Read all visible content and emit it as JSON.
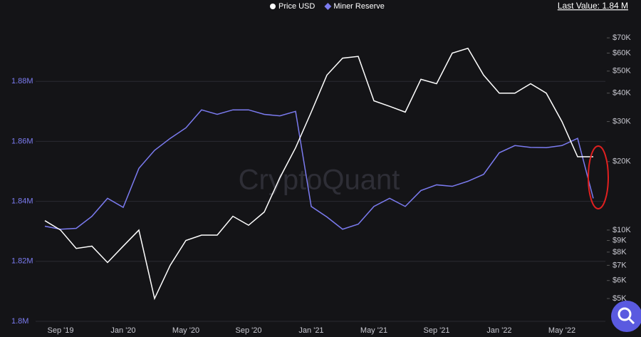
{
  "chart_data": {
    "type": "line",
    "legend_position": "top",
    "annotation": "Last Value: 1.84 M",
    "watermark": "CryptoQuant",
    "categories": [
      null,
      "Sep '19",
      null,
      null,
      null,
      "Jan '20",
      null,
      null,
      null,
      "May '20",
      null,
      null,
      null,
      "Sep '20",
      null,
      null,
      null,
      "Jan '21",
      null,
      null,
      null,
      "May '21",
      null,
      null,
      null,
      "Sep '21",
      null,
      null,
      null,
      "Jan '22",
      null,
      null,
      null,
      "May '22",
      null,
      null
    ],
    "series": [
      {
        "name": "Price USD",
        "color": "#ffffff",
        "axis": "y2",
        "values": [
          11000,
          10000,
          8300,
          8500,
          7200,
          8500,
          10000,
          5000,
          7000,
          9000,
          9500,
          9500,
          11500,
          10500,
          12000,
          17000,
          23000,
          33000,
          48000,
          57000,
          58000,
          37000,
          35000,
          33000,
          46000,
          44000,
          60000,
          63000,
          48000,
          40000,
          40000,
          44000,
          40000,
          30000,
          21000,
          21000
        ]
      },
      {
        "name": "Miner Reserve",
        "color": "#7b7bf0",
        "values": [
          1.8317,
          1.8307,
          1.831,
          1.835,
          1.841,
          1.838,
          1.851,
          1.857,
          1.861,
          1.8645,
          1.8705,
          1.869,
          1.8705,
          1.8705,
          1.869,
          1.8685,
          1.87,
          1.8383,
          1.8348,
          1.8307,
          1.8324,
          1.8383,
          1.841,
          1.8383,
          1.8436,
          1.8455,
          1.845,
          1.8467,
          1.849,
          1.8562,
          1.8586,
          1.858,
          1.8579,
          1.8586,
          1.861,
          1.841
        ]
      }
    ],
    "ylim": [
      1.8,
      1.9
    ],
    "yticks": [
      {
        "value": 1.8,
        "label": "1.8M"
      },
      {
        "value": 1.82,
        "label": "1.82M"
      },
      {
        "value": 1.84,
        "label": "1.84M"
      },
      {
        "value": 1.86,
        "label": "1.86M"
      },
      {
        "value": 1.88,
        "label": "1.88M"
      }
    ],
    "y2lim": [
      3970,
      82700
    ],
    "y2_log": true,
    "y2ticks": [
      {
        "value": 5000,
        "label": "$5K"
      },
      {
        "value": 6000,
        "label": "$6K"
      },
      {
        "value": 7000,
        "label": "$7K"
      },
      {
        "value": 8000,
        "label": "$8K"
      },
      {
        "value": 9000,
        "label": "$9K"
      },
      {
        "value": 10000,
        "label": "$10K"
      },
      {
        "value": 20000,
        "label": "$20K"
      },
      {
        "value": 30000,
        "label": "$30K"
      },
      {
        "value": 40000,
        "label": "$40K"
      },
      {
        "value": 50000,
        "label": "$50K"
      },
      {
        "value": 60000,
        "label": "$60K"
      },
      {
        "value": 70000,
        "label": "$70K"
      }
    ],
    "grid": true
  }
}
